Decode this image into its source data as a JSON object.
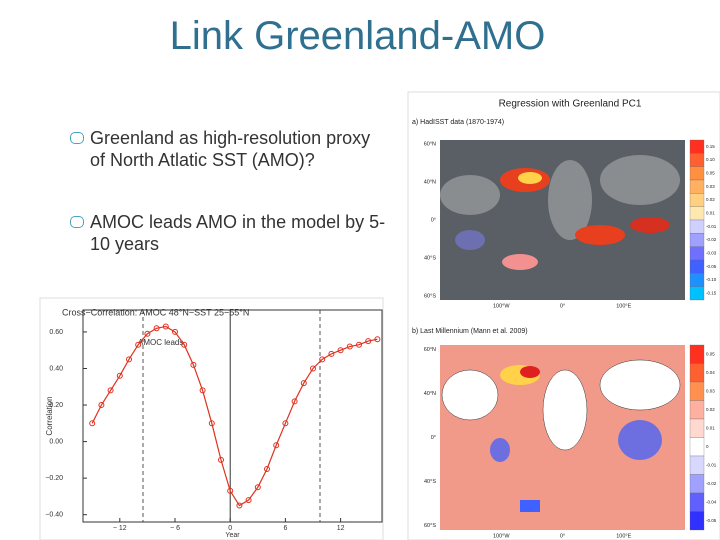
{
  "title": "Link Greenland-AMO",
  "bullets": [
    "Greenland as high-resolution proxy of North Atlatic SST (AMO)?",
    "AMOC leads AMO in the model by 5-10 years"
  ],
  "chart_data": {
    "type": "line",
    "title": "Cross−Correlation: AMOC 48°N−SST 25−55°N",
    "annotation": "AMOC leads",
    "xlabel": "Year",
    "ylabel": "Correlation",
    "color": "#e0301e",
    "marker": "circle",
    "x": [
      -15,
      -14,
      -13,
      -12,
      -11,
      -10,
      -9,
      -8,
      -7,
      -6,
      -5,
      -4,
      -3,
      -2,
      -1,
      0,
      1,
      2,
      3,
      4,
      5,
      6,
      7,
      8,
      9,
      10,
      11,
      12,
      13,
      14,
      15,
      16
    ],
    "values": [
      0.1,
      0.2,
      0.28,
      0.36,
      0.45,
      0.53,
      0.59,
      0.62,
      0.63,
      0.6,
      0.53,
      0.42,
      0.28,
      0.1,
      -0.1,
      -0.27,
      -0.35,
      -0.32,
      -0.25,
      -0.15,
      -0.02,
      0.1,
      0.22,
      0.32,
      0.4,
      0.45,
      0.48,
      0.5,
      0.52,
      0.53,
      0.55,
      0.56
    ],
    "xlim": [
      -16,
      16.5
    ],
    "ylim": [
      -0.44,
      0.72
    ],
    "xticks": [
      {
        "value": -12,
        "label": "− 12"
      },
      {
        "value": -6,
        "label": "− 6"
      },
      0,
      6,
      12
    ],
    "yticks": [
      {
        "value": 0.6,
        "label": "0.60"
      },
      {
        "value": 0.4,
        "label": "0.40"
      },
      {
        "value": 0.2,
        "label": "0.20"
      },
      {
        "value": 0,
        "label": "0.00"
      },
      {
        "value": -0.2,
        "label": "−0.20"
      },
      {
        "value": -0.4,
        "label": "−0.40"
      }
    ]
  },
  "maps": {
    "title": "Regression with Greenland PC1",
    "panels": [
      {
        "label": "a) HadISST data (1870-1974)",
        "lat": [
          "60°N",
          "40°N",
          "0°",
          "40°S",
          "60°S"
        ],
        "lon": [
          "100°W",
          "0°",
          "100°E"
        ],
        "colorbar": [
          "0.15",
          "0.10",
          "0.05",
          "0.03",
          "0.02",
          "0.01",
          "-0.01",
          "-0.02",
          "-0.03",
          "-0.05",
          "-0.10",
          "-0.15"
        ]
      },
      {
        "label": "b) Last Millennium (Mann et al. 2009)",
        "lat": [
          "60°N",
          "40°N",
          "0°",
          "40°S",
          "60°S"
        ],
        "lon": [
          "100°W",
          "0°",
          "100°E"
        ],
        "colorbar": [
          "0.05",
          "0.04",
          "0.03",
          "0.02",
          "0.01",
          "0",
          "-0.01",
          "-0.02",
          "-0.04",
          "-0.05"
        ]
      }
    ]
  }
}
